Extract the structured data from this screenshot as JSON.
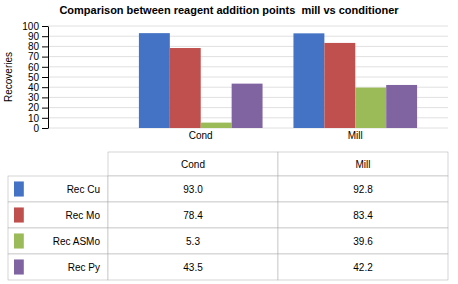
{
  "chart_data": {
    "type": "bar",
    "title": "Comparison between reagent addition points  mill vs conditioner",
    "ylabel": "Recoveries",
    "categories": [
      "Cond",
      "Mill"
    ],
    "series": [
      {
        "name": "Rec Cu",
        "color": "#4472C4",
        "values": [
          93.0,
          92.8
        ],
        "value_labels": [
          "93.0",
          "92.8"
        ]
      },
      {
        "name": "Rec Mo",
        "color": "#C0504D",
        "values": [
          78.4,
          83.4
        ],
        "value_labels": [
          "78.4",
          "83.4"
        ]
      },
      {
        "name": "Rec ASMo",
        "color": "#9BBB59",
        "values": [
          5.3,
          39.6
        ],
        "value_labels": [
          "5.3",
          "39.6"
        ]
      },
      {
        "name": "Rec Py",
        "color": "#8064A2",
        "values": [
          43.5,
          42.2
        ],
        "value_labels": [
          "43.5",
          "42.2"
        ]
      }
    ],
    "ylim": [
      0,
      100
    ],
    "yticks": [
      0,
      10,
      20,
      30,
      40,
      50,
      60,
      70,
      80,
      90,
      100
    ],
    "grid": true
  }
}
